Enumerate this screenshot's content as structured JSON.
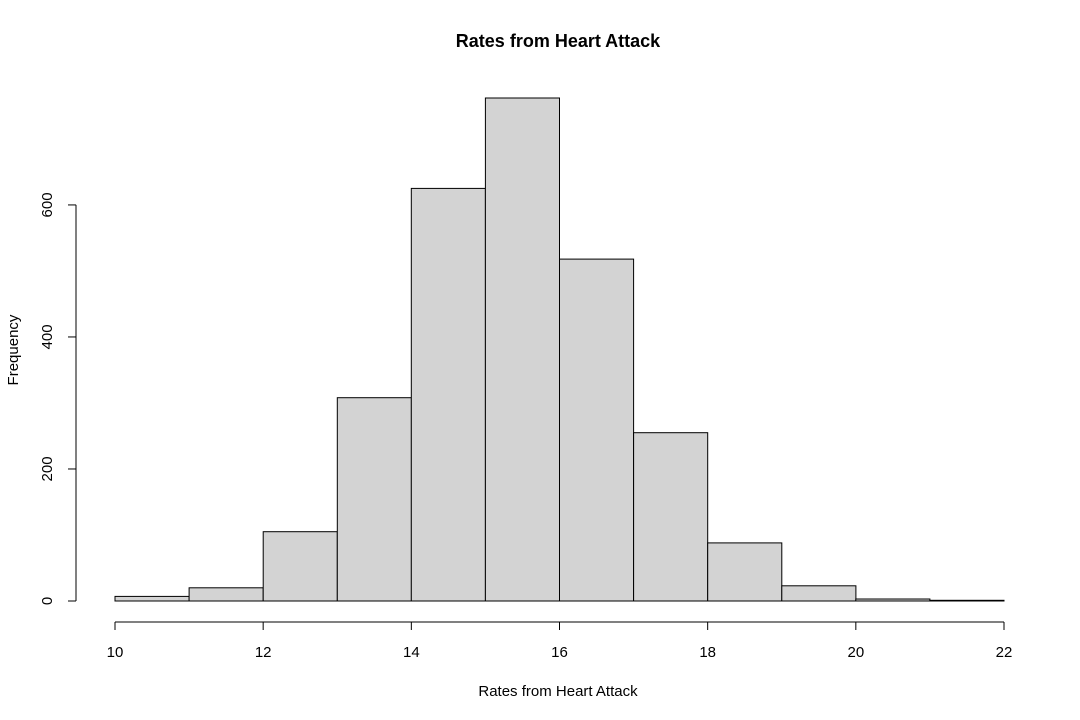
{
  "chart_data": {
    "type": "bar",
    "title": "Rates from Heart Attack",
    "xlabel": "Rates from Heart Attack",
    "ylabel": "Frequency",
    "bins": [
      {
        "start": 10,
        "end": 11,
        "count": 7
      },
      {
        "start": 11,
        "end": 12,
        "count": 20
      },
      {
        "start": 12,
        "end": 13,
        "count": 105
      },
      {
        "start": 13,
        "end": 14,
        "count": 308
      },
      {
        "start": 14,
        "end": 15,
        "count": 625
      },
      {
        "start": 15,
        "end": 16,
        "count": 762
      },
      {
        "start": 16,
        "end": 17,
        "count": 518
      },
      {
        "start": 17,
        "end": 18,
        "count": 255
      },
      {
        "start": 18,
        "end": 19,
        "count": 88
      },
      {
        "start": 19,
        "end": 20,
        "count": 23
      },
      {
        "start": 20,
        "end": 21,
        "count": 3
      },
      {
        "start": 21,
        "end": 22,
        "count": 1
      }
    ],
    "xlim": [
      10,
      22
    ],
    "ylim": [
      0,
      762
    ],
    "x_ticks": [
      "10",
      "12",
      "14",
      "16",
      "18",
      "20",
      "22"
    ],
    "y_ticks": [
      "0",
      "200",
      "400",
      "600"
    ],
    "bar_color": "#d3d3d3",
    "edge_color": "#000000",
    "grid": false,
    "legend": "none"
  }
}
